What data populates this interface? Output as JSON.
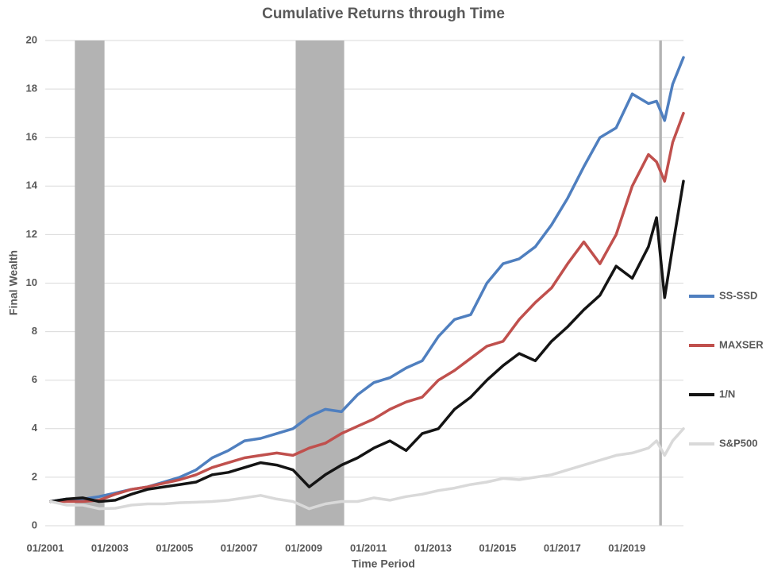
{
  "chart_data": {
    "type": "line",
    "title": "Cumulative Returns through Time",
    "x_label": "Time Period",
    "y_label": "Final Wealth",
    "grid": true,
    "legend": "right",
    "xlim": [
      "01/2001",
      "10/2020"
    ],
    "xticks": [
      "01/2001",
      "01/2003",
      "01/2005",
      "01/2007",
      "01/2009",
      "01/2011",
      "01/2013",
      "01/2015",
      "01/2017",
      "01/2019"
    ],
    "ylim": [
      0,
      20
    ],
    "yticks": [
      0,
      2,
      4,
      6,
      8,
      10,
      12,
      14,
      16,
      18,
      20
    ],
    "shaded_periods": [
      {
        "start": "12/2001",
        "end": "11/2002",
        "color": "#b3b3b3"
      },
      {
        "start": "10/2008",
        "end": "04/2010",
        "color": "#b3b3b3"
      },
      {
        "start": "01/2020",
        "end": "02/2020",
        "color": "#b3b3b3"
      }
    ],
    "x": [
      "03/2001",
      "09/2001",
      "03/2002",
      "09/2002",
      "03/2003",
      "09/2003",
      "03/2004",
      "09/2004",
      "03/2005",
      "09/2005",
      "03/2006",
      "09/2006",
      "03/2007",
      "09/2007",
      "03/2008",
      "09/2008",
      "03/2009",
      "09/2009",
      "03/2010",
      "09/2010",
      "03/2011",
      "09/2011",
      "03/2012",
      "09/2012",
      "03/2013",
      "09/2013",
      "03/2014",
      "09/2014",
      "03/2015",
      "09/2015",
      "03/2016",
      "09/2016",
      "03/2017",
      "09/2017",
      "03/2018",
      "09/2018",
      "03/2019",
      "09/2019",
      "12/2019",
      "03/2020",
      "06/2020",
      "10/2020"
    ],
    "series": [
      {
        "name": "SS-SSD",
        "color": "#4f7fbf",
        "values": [
          1.0,
          1.1,
          1.1,
          1.2,
          1.35,
          1.5,
          1.6,
          1.8,
          2.0,
          2.3,
          2.8,
          3.1,
          3.5,
          3.6,
          3.8,
          4.0,
          4.5,
          4.8,
          4.7,
          5.4,
          5.9,
          6.1,
          6.5,
          6.8,
          7.8,
          8.5,
          8.7,
          10.0,
          10.8,
          11.0,
          11.5,
          12.4,
          13.5,
          14.8,
          16.0,
          16.4,
          17.8,
          17.4,
          17.5,
          16.7,
          18.2,
          19.3
        ]
      },
      {
        "name": "MAXSER",
        "color": "#c0504d",
        "values": [
          1.0,
          1.0,
          1.0,
          1.05,
          1.3,
          1.5,
          1.6,
          1.75,
          1.9,
          2.1,
          2.4,
          2.6,
          2.8,
          2.9,
          3.0,
          2.9,
          3.2,
          3.4,
          3.8,
          4.1,
          4.4,
          4.8,
          5.1,
          5.3,
          6.0,
          6.4,
          6.9,
          7.4,
          7.6,
          8.5,
          9.2,
          9.8,
          10.8,
          11.7,
          10.8,
          12.0,
          14.0,
          15.3,
          15.0,
          14.2,
          15.8,
          17.0
        ]
      },
      {
        "name": "1/N",
        "color": "#141414",
        "values": [
          1.0,
          1.1,
          1.15,
          1.0,
          1.05,
          1.3,
          1.5,
          1.6,
          1.7,
          1.8,
          2.1,
          2.2,
          2.4,
          2.6,
          2.5,
          2.3,
          1.6,
          2.1,
          2.5,
          2.8,
          3.2,
          3.5,
          3.1,
          3.8,
          4.0,
          4.8,
          5.3,
          6.0,
          6.6,
          7.1,
          6.8,
          7.6,
          8.2,
          8.9,
          9.5,
          10.7,
          10.2,
          11.5,
          12.7,
          9.4,
          11.5,
          14.2
        ]
      },
      {
        "name": "S&P500",
        "color": "#d9d9d9",
        "values": [
          1.0,
          0.85,
          0.85,
          0.7,
          0.72,
          0.85,
          0.9,
          0.9,
          0.95,
          0.97,
          1.0,
          1.05,
          1.15,
          1.25,
          1.1,
          1.0,
          0.7,
          0.9,
          1.0,
          1.0,
          1.15,
          1.05,
          1.2,
          1.3,
          1.45,
          1.55,
          1.7,
          1.8,
          1.95,
          1.9,
          2.0,
          2.1,
          2.3,
          2.5,
          2.7,
          2.9,
          3.0,
          3.2,
          3.5,
          2.9,
          3.5,
          4.0
        ]
      }
    ]
  }
}
